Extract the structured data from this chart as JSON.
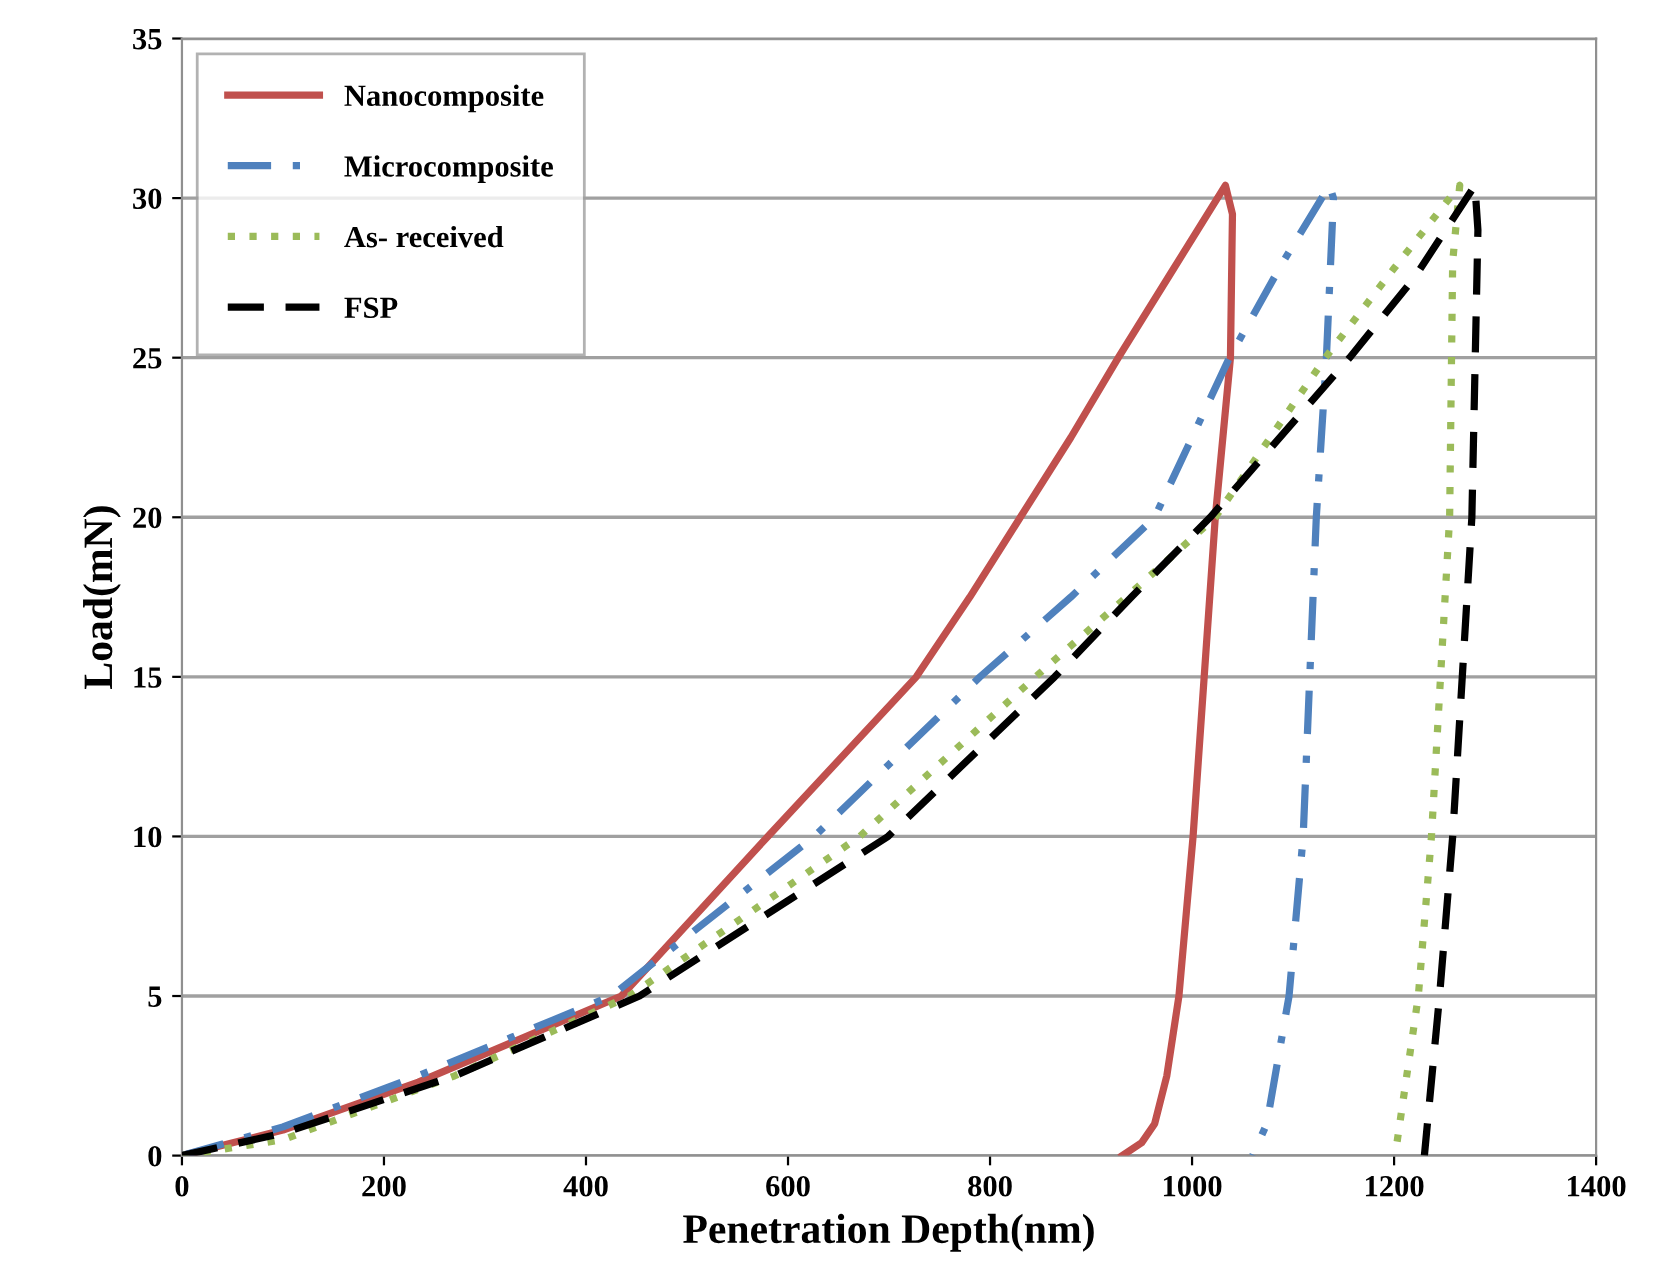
{
  "chart_data": {
    "type": "line",
    "xlabel": "Penetration Depth(nm)",
    "ylabel": "Load(mN)",
    "xlim": [
      0,
      1400
    ],
    "ylim": [
      0,
      35
    ],
    "xticks": [
      0,
      200,
      400,
      600,
      800,
      1000,
      1200,
      1400
    ],
    "yticks": [
      0,
      5,
      10,
      15,
      20,
      25,
      30,
      35
    ],
    "grid": "y",
    "legend": "top left",
    "marker": "none",
    "series": [
      {
        "name": "Nanocomposite",
        "color": "#c0504d",
        "line_style": "solid",
        "x": [
          0,
          100,
          234,
          435,
          580,
          727,
          780,
          830,
          880,
          927,
          980,
          1033,
          1040,
          1038,
          1023,
          1001,
          987,
          975,
          963,
          950,
          931
        ],
        "values": [
          0,
          0.8,
          2.3,
          5,
          10,
          15,
          17.5,
          20,
          22.5,
          25,
          27.7,
          30.4,
          29.5,
          25,
          20,
          10,
          5,
          2.5,
          1,
          0.4,
          0
        ]
      },
      {
        "name": "Microcomposite",
        "color": "#4f81bd",
        "line_style": "dashdot",
        "x": [
          0,
          100,
          234,
          425,
          626,
          790,
          880,
          963,
          1037,
          1090,
          1136,
          1140,
          1133,
          1123,
          1110,
          1096,
          1074,
          1060
        ],
        "values": [
          0,
          0.9,
          2.5,
          5,
          10,
          15,
          17.5,
          20,
          25,
          28,
          30.4,
          30,
          25,
          20,
          10,
          5,
          1,
          0
        ]
      },
      {
        "name": "As- received",
        "color": "#9bbb59",
        "line_style": "dotted",
        "x": [
          0,
          100,
          270,
          443,
          671,
          845,
          935,
          1023,
          1132,
          1200,
          1265,
          1258,
          1255,
          1237,
          1224,
          1201
        ],
        "values": [
          0,
          0.5,
          2.5,
          5,
          10,
          15,
          17.5,
          20,
          25,
          27.8,
          30.4,
          28,
          20,
          10,
          5,
          0
        ]
      },
      {
        "name": "FSP",
        "color": "#000000",
        "line_style": "dashed",
        "x": [
          0,
          100,
          270,
          453,
          699,
          864,
          940,
          1018,
          1156,
          1220,
          1280,
          1283,
          1277,
          1258,
          1245,
          1230
        ],
        "values": [
          0,
          0.7,
          2.5,
          5,
          10,
          15,
          17.5,
          20,
          25,
          27.5,
          30.4,
          29,
          20,
          10,
          5,
          0
        ]
      }
    ]
  }
}
